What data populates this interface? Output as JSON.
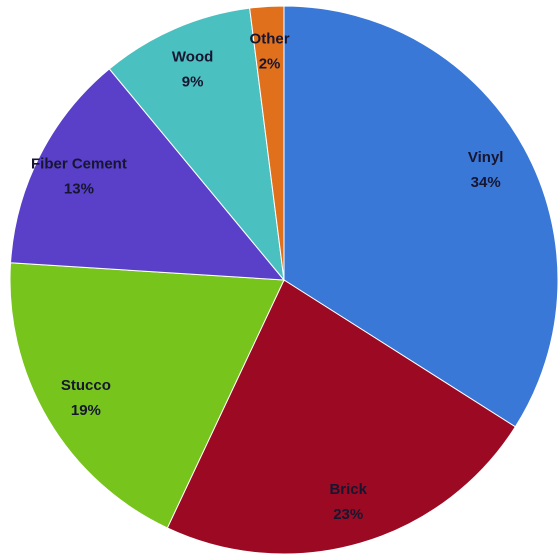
{
  "chart_data": {
    "type": "pie",
    "categories": [
      "Vinyl",
      "Brick",
      "Stucco",
      "Fiber Cement",
      "Wood",
      "Other"
    ],
    "values": [
      34,
      23,
      19,
      13,
      9,
      2
    ],
    "value_labels": [
      "34%",
      "23%",
      "19%",
      "13%",
      "9%",
      "2%"
    ],
    "colors": [
      "#3a78d8",
      "#9b0a22",
      "#76c41c",
      "#5a3fc8",
      "#4bc0c0",
      "#e0701c"
    ]
  }
}
